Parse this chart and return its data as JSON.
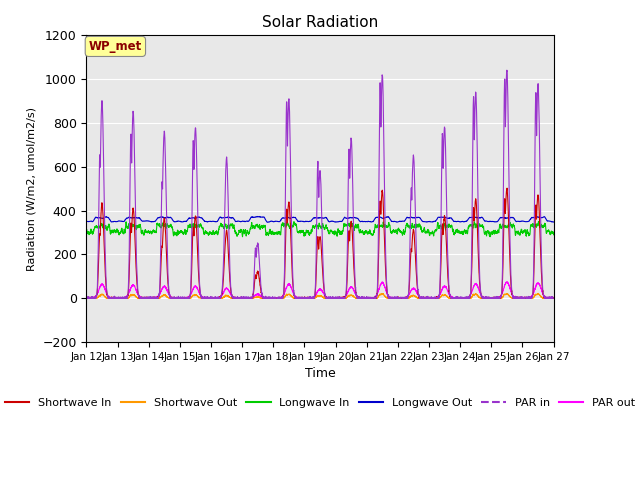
{
  "title": "Solar Radiation",
  "ylabel": "Radiation (W/m2, umol/m2/s)",
  "xlabel": "Time",
  "ylim": [
    -200,
    1200
  ],
  "yticks": [
    -200,
    0,
    200,
    400,
    600,
    800,
    1000,
    1200
  ],
  "xtick_labels": [
    "Jan 12",
    "Jan 13",
    "Jan 14",
    "Jan 15",
    "Jan 16",
    "Jan 17",
    "Jan 18",
    "Jan 19",
    "Jan 20",
    "Jan 21",
    "Jan 22",
    "Jan 23",
    "Jan 24",
    "Jan 25",
    "Jan 26",
    "Jan 27"
  ],
  "legend_labels": [
    "Shortwave In",
    "Shortwave Out",
    "Longwave In",
    "Longwave Out",
    "PAR in",
    "PAR out"
  ],
  "legend_colors": [
    "#cc0000",
    "#ff9900",
    "#00cc00",
    "#0000cc",
    "#9933cc",
    "#ff00ff"
  ],
  "wp_met_box_color": "#ffff99",
  "wp_met_text_color": "#8b0000",
  "background_plot": "#e8e8e8",
  "title_fontsize": 11,
  "legend_fontsize": 8
}
